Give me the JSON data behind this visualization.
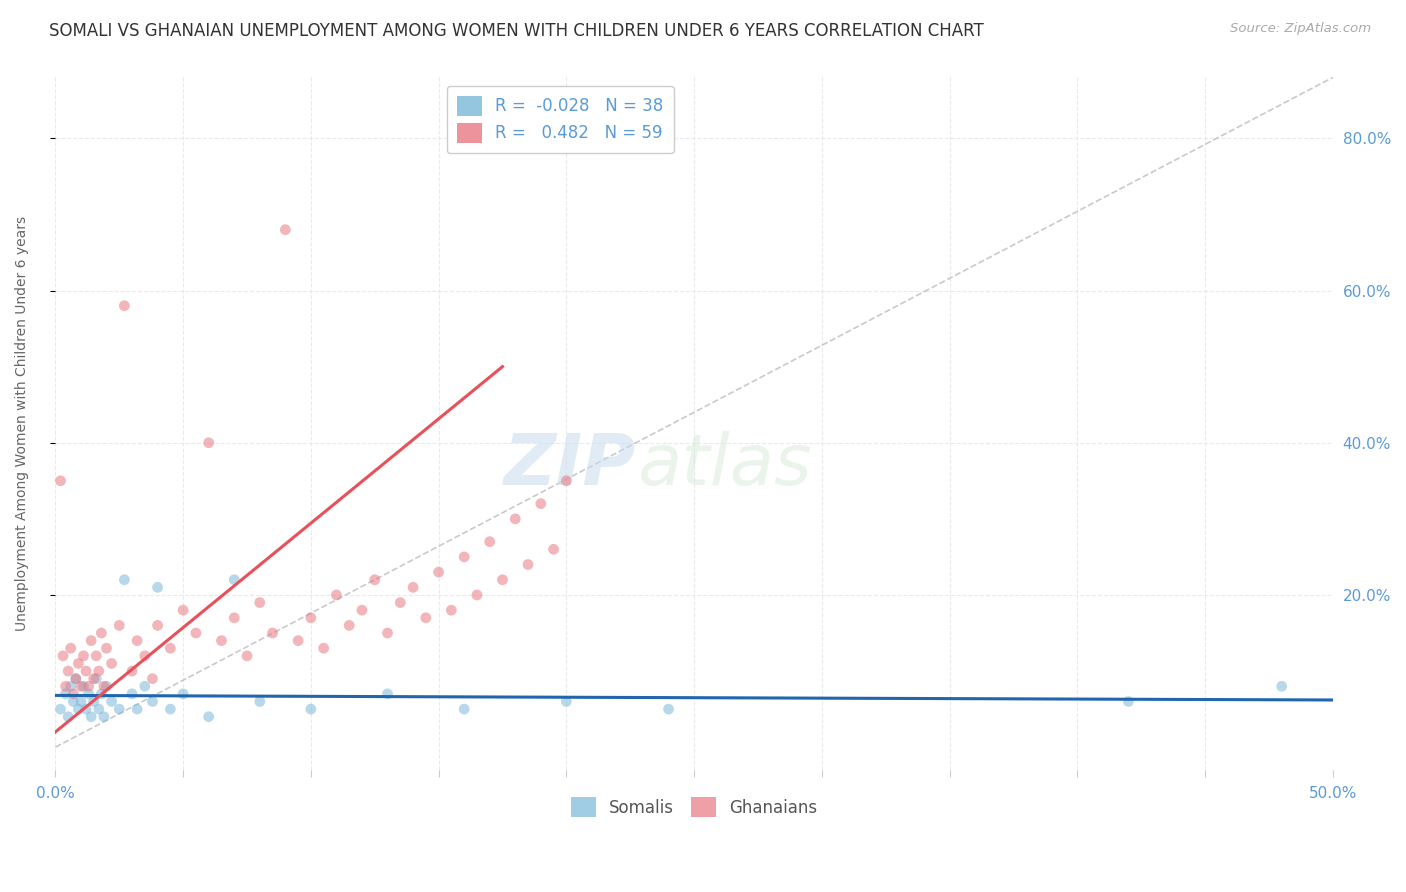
{
  "title": "SOMALI VS GHANAIAN UNEMPLOYMENT AMONG WOMEN WITH CHILDREN UNDER 6 YEARS CORRELATION CHART",
  "source": "Source: ZipAtlas.com",
  "ylabel": "Unemployment Among Women with Children Under 6 years",
  "ytick_labels": [
    "20.0%",
    "40.0%",
    "60.0%",
    "80.0%"
  ],
  "ytick_values": [
    0.2,
    0.4,
    0.6,
    0.8
  ],
  "xmin": 0.0,
  "xmax": 0.5,
  "ymin": -0.03,
  "ymax": 0.88,
  "legend_r_entries": [
    {
      "label_r": "R = ",
      "r_val": "-0.028",
      "label_n": "  N = ",
      "n_val": "38",
      "color": "#aec6e8"
    },
    {
      "label_r": "R = ",
      "r_val": "  0.482",
      "label_n": "  N = ",
      "n_val": "59",
      "color": "#f4b8c1"
    }
  ],
  "somali_scatter": {
    "color": "#7ab8d9",
    "alpha": 0.55,
    "x": [
      0.002,
      0.004,
      0.005,
      0.006,
      0.007,
      0.008,
      0.009,
      0.01,
      0.011,
      0.012,
      0.013,
      0.014,
      0.015,
      0.016,
      0.017,
      0.018,
      0.019,
      0.02,
      0.022,
      0.025,
      0.027,
      0.03,
      0.032,
      0.035,
      0.038,
      0.04,
      0.045,
      0.05,
      0.06,
      0.07,
      0.08,
      0.1,
      0.13,
      0.16,
      0.2,
      0.24,
      0.42,
      0.48
    ],
    "y": [
      0.05,
      0.07,
      0.04,
      0.08,
      0.06,
      0.09,
      0.05,
      0.06,
      0.08,
      0.05,
      0.07,
      0.04,
      0.06,
      0.09,
      0.05,
      0.07,
      0.04,
      0.08,
      0.06,
      0.05,
      0.22,
      0.07,
      0.05,
      0.08,
      0.06,
      0.21,
      0.05,
      0.07,
      0.04,
      0.22,
      0.06,
      0.05,
      0.07,
      0.05,
      0.06,
      0.05,
      0.06,
      0.08
    ]
  },
  "ghanaian_scatter": {
    "color": "#e87882",
    "alpha": 0.55,
    "x": [
      0.002,
      0.003,
      0.004,
      0.005,
      0.006,
      0.007,
      0.008,
      0.009,
      0.01,
      0.011,
      0.012,
      0.013,
      0.014,
      0.015,
      0.016,
      0.017,
      0.018,
      0.019,
      0.02,
      0.022,
      0.025,
      0.027,
      0.03,
      0.032,
      0.035,
      0.038,
      0.04,
      0.045,
      0.05,
      0.055,
      0.06,
      0.065,
      0.07,
      0.075,
      0.08,
      0.085,
      0.09,
      0.095,
      0.1,
      0.105,
      0.11,
      0.115,
      0.12,
      0.125,
      0.13,
      0.135,
      0.14,
      0.145,
      0.15,
      0.155,
      0.16,
      0.165,
      0.17,
      0.175,
      0.18,
      0.185,
      0.19,
      0.195,
      0.2
    ],
    "y": [
      0.35,
      0.12,
      0.08,
      0.1,
      0.13,
      0.07,
      0.09,
      0.11,
      0.08,
      0.12,
      0.1,
      0.08,
      0.14,
      0.09,
      0.12,
      0.1,
      0.15,
      0.08,
      0.13,
      0.11,
      0.16,
      0.58,
      0.1,
      0.14,
      0.12,
      0.09,
      0.16,
      0.13,
      0.18,
      0.15,
      0.4,
      0.14,
      0.17,
      0.12,
      0.19,
      0.15,
      0.68,
      0.14,
      0.17,
      0.13,
      0.2,
      0.16,
      0.18,
      0.22,
      0.15,
      0.19,
      0.21,
      0.17,
      0.23,
      0.18,
      0.25,
      0.2,
      0.27,
      0.22,
      0.3,
      0.24,
      0.32,
      0.26,
      0.35
    ]
  },
  "somali_trendline": {
    "color": "#2166ac",
    "lw": 2.2,
    "x": [
      0.0,
      0.5
    ],
    "y": [
      0.068,
      0.062
    ]
  },
  "ghanaian_trendline": {
    "color": "#e8505a",
    "lw": 2.2,
    "x": [
      0.0,
      0.175
    ],
    "y": [
      0.02,
      0.5
    ]
  },
  "diagonal_line": {
    "color": "#c0c0c0",
    "style": "--",
    "x": [
      0.0,
      0.5
    ],
    "y": [
      0.0,
      0.88
    ]
  },
  "watermark_zip": "ZIP",
  "watermark_atlas": "atlas",
  "title_fontsize": 12,
  "label_fontsize": 10,
  "tick_fontsize": 11,
  "bg_color": "#ffffff",
  "grid_color": "#e8e8e8",
  "title_color": "#333333",
  "axis_color": "#5b9bd5",
  "marker_size": 60
}
